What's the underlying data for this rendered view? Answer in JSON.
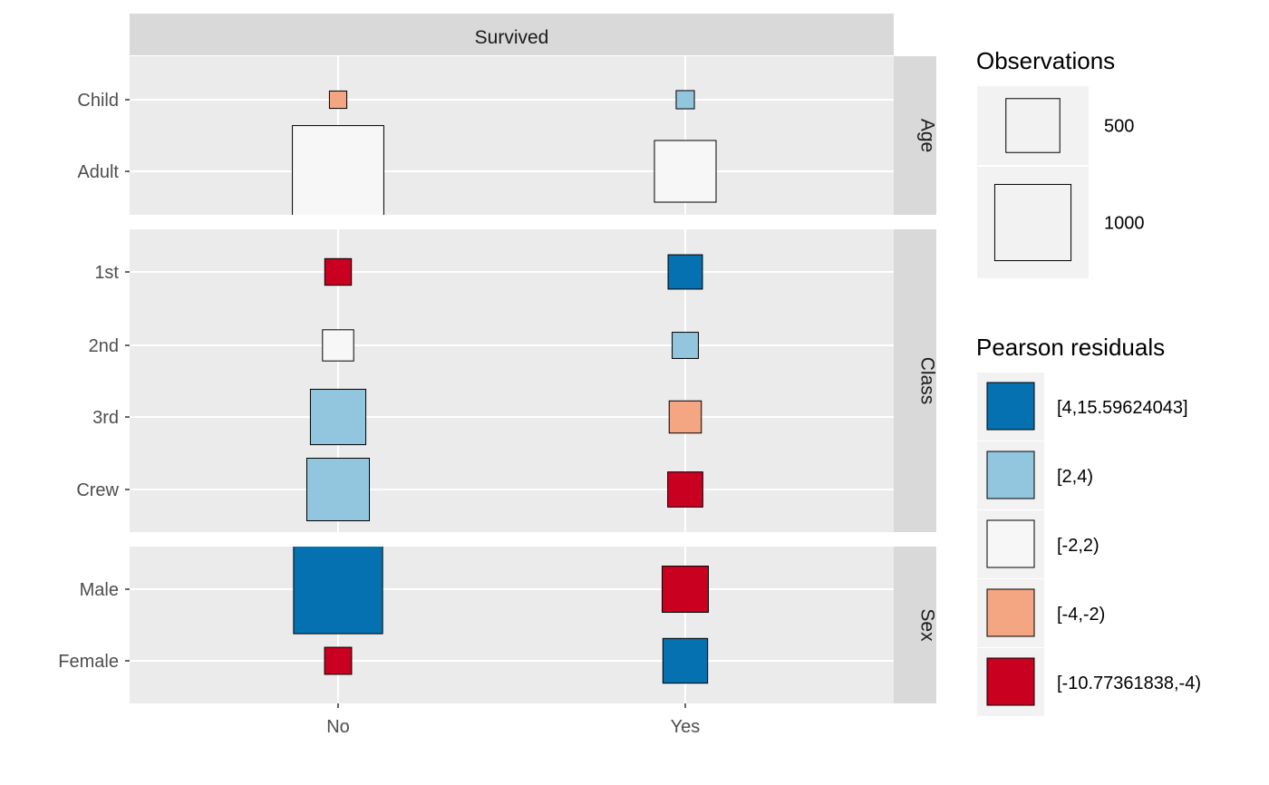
{
  "chart_data": {
    "type": "heatmap",
    "title": "",
    "xlabel": "",
    "ylabel": "",
    "column_strip": "Survived",
    "x_categories": [
      "No",
      "Yes"
    ],
    "panels": [
      {
        "strip": "Age",
        "rows": [
          "Child",
          "Adult"
        ],
        "cells": [
          {
            "row": "Child",
            "col": "No",
            "observations": 52,
            "residual_class": "[-4,-2)"
          },
          {
            "row": "Child",
            "col": "Yes",
            "observations": 57,
            "residual_class": "[2,4)"
          },
          {
            "row": "Adult",
            "col": "No",
            "observations": 1438,
            "residual_class": "[-2,2)"
          },
          {
            "row": "Adult",
            "col": "Yes",
            "observations": 654,
            "residual_class": "[-2,2)"
          }
        ]
      },
      {
        "strip": "Class",
        "rows": [
          "1st",
          "2nd",
          "3rd",
          "Crew"
        ],
        "cells": [
          {
            "row": "1st",
            "col": "No",
            "observations": 122,
            "residual_class": "[-10.77361838,-4)"
          },
          {
            "row": "1st",
            "col": "Yes",
            "observations": 203,
            "residual_class": "[4,15.59624043]"
          },
          {
            "row": "2nd",
            "col": "No",
            "observations": 167,
            "residual_class": "[-2,2)"
          },
          {
            "row": "2nd",
            "col": "Yes",
            "observations": 118,
            "residual_class": "[2,4)"
          },
          {
            "row": "3rd",
            "col": "No",
            "observations": 528,
            "residual_class": "[2,4)"
          },
          {
            "row": "3rd",
            "col": "Yes",
            "observations": 178,
            "residual_class": "[-4,-2)"
          },
          {
            "row": "Crew",
            "col": "No",
            "observations": 673,
            "residual_class": "[2,4)"
          },
          {
            "row": "Crew",
            "col": "Yes",
            "observations": 212,
            "residual_class": "[-10.77361838,-4)"
          }
        ]
      },
      {
        "strip": "Sex",
        "rows": [
          "Male",
          "Female"
        ],
        "cells": [
          {
            "row": "Male",
            "col": "No",
            "observations": 1364,
            "residual_class": "[4,15.59624043]"
          },
          {
            "row": "Male",
            "col": "Yes",
            "observations": 367,
            "residual_class": "[-10.77361838,-4)"
          },
          {
            "row": "Female",
            "col": "No",
            "observations": 126,
            "residual_class": "[-10.77361838,-4)"
          },
          {
            "row": "Female",
            "col": "Yes",
            "observations": 344,
            "residual_class": "[4,15.59624043]"
          }
        ]
      }
    ],
    "legend": {
      "placement": "right",
      "size": {
        "title": "Observations",
        "entries": [
          {
            "label": "500",
            "value": 500
          },
          {
            "label": "1000",
            "value": 1000
          }
        ]
      },
      "fill": {
        "title": "Pearson residuals",
        "entries": [
          {
            "label": "[4,15.59624043]",
            "color": "#0571b0"
          },
          {
            "label": "[2,4)",
            "color": "#92c5de"
          },
          {
            "label": "[-2,2)",
            "color": "#f7f7f7"
          },
          {
            "label": "[-4,-2)",
            "color": "#f4a582"
          },
          {
            "label": "[-10.77361838,-4)",
            "color": "#ca0020"
          }
        ]
      }
    },
    "colors": {
      "panel_background": "#ebebeb",
      "strip_background": "#d9d9d9",
      "grid": "#ffffff",
      "box_border": "#000000",
      "legend_key_background": "#f2f2f2"
    }
  }
}
